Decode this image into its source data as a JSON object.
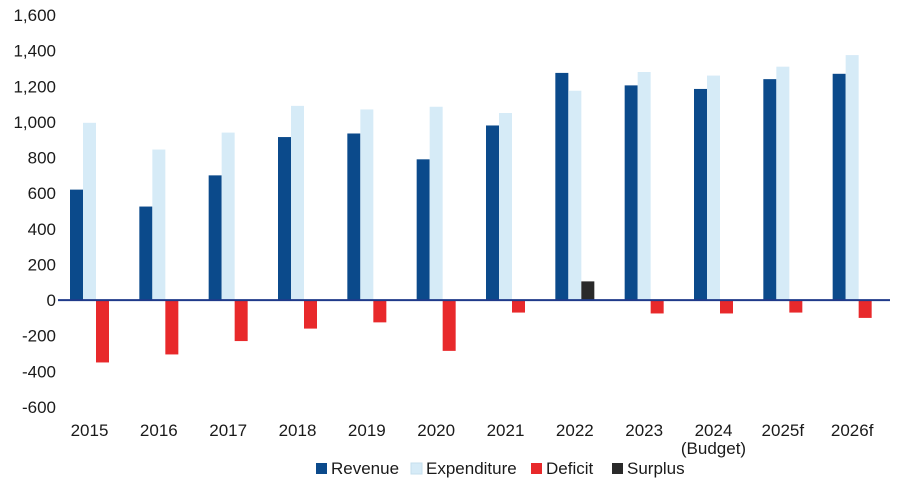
{
  "chart_data": {
    "type": "bar",
    "title": "",
    "xlabel": "",
    "ylabel": "",
    "ylim": [
      -600,
      1600
    ],
    "yticks": [
      -600,
      -400,
      -200,
      0,
      200,
      400,
      600,
      800,
      1000,
      1200,
      1400,
      1600
    ],
    "ytick_labels": [
      "-600",
      "-400",
      "-200",
      "0",
      "200",
      "400",
      "600",
      "800",
      "1,000",
      "1,200",
      "1,400",
      "1,600"
    ],
    "categories": [
      [
        "2015"
      ],
      [
        "2016"
      ],
      [
        "2017"
      ],
      [
        "2018"
      ],
      [
        "2019"
      ],
      [
        "2020"
      ],
      [
        "2021"
      ],
      [
        "2022"
      ],
      [
        "2023"
      ],
      [
        "2024",
        "(Budget)"
      ],
      [
        "2025f"
      ],
      [
        "2026f"
      ]
    ],
    "series": [
      {
        "name": "Revenue",
        "color": "#0b4a8b",
        "values": [
          620,
          525,
          700,
          915,
          935,
          790,
          980,
          1275,
          1205,
          1185,
          1240,
          1270
        ]
      },
      {
        "name": "Expenditure",
        "color": "#d6ebf7",
        "values": [
          995,
          845,
          940,
          1090,
          1070,
          1085,
          1050,
          1175,
          1280,
          1260,
          1310,
          1375
        ]
      },
      {
        "name": "Deficit",
        "color": "#e8292b",
        "values": [
          -350,
          -305,
          -230,
          -160,
          -125,
          -285,
          -70,
          null,
          -75,
          -75,
          -70,
          -100
        ]
      },
      {
        "name": "Surplus",
        "color": "#2a2a2a",
        "values": [
          null,
          null,
          null,
          null,
          null,
          null,
          null,
          105,
          null,
          null,
          null,
          null
        ]
      }
    ],
    "legend": "bottom-center",
    "grid": false,
    "zero_line_color": "#1f3a8a"
  }
}
